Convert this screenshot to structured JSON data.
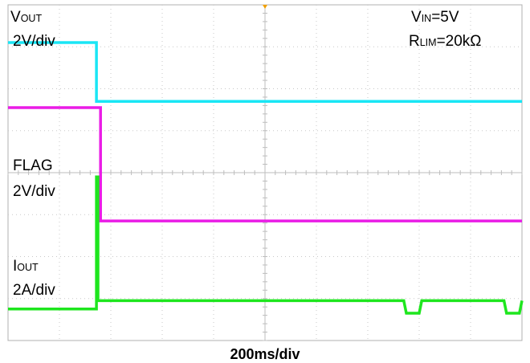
{
  "chart_data": {
    "type": "line",
    "title": "",
    "xlabel": "200ms/div",
    "ylabel": "",
    "grid": true,
    "x_divisions": 10,
    "y_divisions": 8,
    "x_unit_per_div": "200ms",
    "xlim": [
      0,
      10
    ],
    "series": [
      {
        "name": "VOUT",
        "scale": "2V/div",
        "color": "#19e6f5",
        "x": [
          0,
          1.72,
          1.72,
          1.78,
          10
        ],
        "y": [
          7.1,
          7.1,
          5.7,
          5.7,
          5.7
        ]
      },
      {
        "name": "FLAG",
        "scale": "2V/div",
        "color": "#ea1ce6",
        "x": [
          0,
          1.8,
          1.8,
          1.88,
          10
        ],
        "y": [
          5.55,
          5.55,
          2.85,
          2.85,
          2.85
        ]
      },
      {
        "name": "IOUT",
        "scale": "2A/div",
        "color": "#1ee61e",
        "x": [
          0,
          1.72,
          1.72,
          1.75,
          1.75,
          1.78,
          1.78,
          7.7,
          7.75,
          8.0,
          8.05,
          9.65,
          9.7,
          9.95,
          10
        ],
        "y": [
          0.75,
          0.75,
          3.9,
          3.9,
          0.95,
          0.95,
          0.95,
          0.95,
          0.65,
          0.65,
          0.95,
          0.95,
          0.65,
          0.65,
          0.95
        ]
      }
    ]
  },
  "labels": {
    "vout_main": "V",
    "vout_sub": "OUT",
    "vout_scale": "2V/div",
    "flag_main": "FLAG",
    "flag_scale": "2V/div",
    "iout_main": "I",
    "iout_sub": "OUT",
    "iout_scale": "2A/div",
    "vin_main": "V",
    "vin_sub": "IN",
    "vin_value": "=5V",
    "rlim_main": "R",
    "rlim_sub": "LIM",
    "rlim_value": "=20kΩ"
  }
}
